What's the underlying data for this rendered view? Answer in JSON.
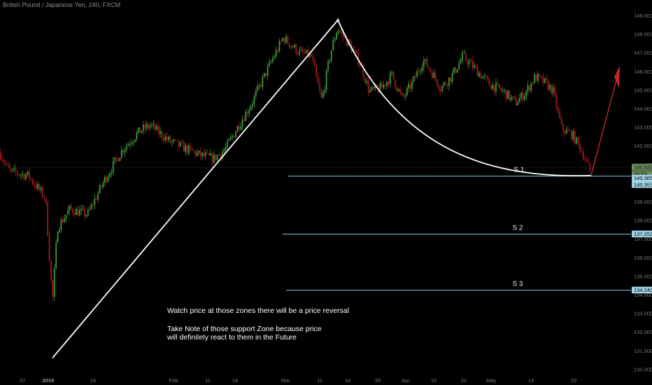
{
  "header": {
    "title": "British Pound / Japanese Yen, 240, FXCM"
  },
  "chart_data": {
    "type": "candlestick",
    "symbol": "GBP/JPY",
    "ylim": [
      129.6,
      149.6
    ],
    "y_ticks": [
      130,
      131,
      132,
      133,
      134,
      135,
      136,
      137,
      138,
      139,
      140,
      141,
      142,
      143,
      144,
      145,
      146,
      147,
      148,
      149
    ],
    "y_tick_labels": [
      "130.000",
      "131.000",
      "132.000",
      "133.000",
      "134.000",
      "135.000",
      "136.000",
      "137.000",
      "138.000",
      "139.000",
      "140.000",
      "141.000",
      "142.000",
      "143.000",
      "144.000",
      "145.000",
      "146.000",
      "147.000",
      "148.000",
      "149.000"
    ],
    "x_ticks": [
      {
        "label": "27",
        "bold": false
      },
      {
        "label": "2019",
        "bold": true
      },
      {
        "label": "14",
        "bold": false
      },
      {
        "label": "Feb",
        "bold": false
      },
      {
        "label": "11",
        "bold": false
      },
      {
        "label": "18",
        "bold": false
      },
      {
        "label": "Mar",
        "bold": false
      },
      {
        "label": "11",
        "bold": false
      },
      {
        "label": "18",
        "bold": false
      },
      {
        "label": "25",
        "bold": false
      },
      {
        "label": "Apr",
        "bold": false
      },
      {
        "label": "15",
        "bold": false
      },
      {
        "label": "22",
        "bold": false
      },
      {
        "label": "May",
        "bold": false
      },
      {
        "label": "13",
        "bold": false
      },
      {
        "label": "20",
        "bold": false
      }
    ],
    "price_anchors": [
      [
        0,
        141.6
      ],
      [
        14,
        140.6
      ],
      [
        40,
        140.4
      ],
      [
        65,
        139.2
      ],
      [
        75,
        133.6
      ],
      [
        82,
        137.6
      ],
      [
        100,
        138.6
      ],
      [
        125,
        138.3
      ],
      [
        150,
        140.2
      ],
      [
        175,
        141.8
      ],
      [
        200,
        142.8
      ],
      [
        215,
        143.1
      ],
      [
        240,
        142.3
      ],
      [
        262,
        141.9
      ],
      [
        285,
        141.5
      ],
      [
        305,
        141.3
      ],
      [
        322,
        141.8
      ],
      [
        338,
        142.9
      ],
      [
        360,
        144.3
      ],
      [
        385,
        146.3
      ],
      [
        405,
        147.8
      ],
      [
        428,
        147.0
      ],
      [
        445,
        146.8
      ],
      [
        460,
        144.4
      ],
      [
        472,
        146.9
      ],
      [
        482,
        148.3
      ],
      [
        500,
        147.4
      ],
      [
        515,
        146.4
      ],
      [
        528,
        144.9
      ],
      [
        545,
        145.1
      ],
      [
        560,
        145.8
      ],
      [
        575,
        144.5
      ],
      [
        590,
        145.4
      ],
      [
        605,
        146.6
      ],
      [
        618,
        145.9
      ],
      [
        630,
        145.1
      ],
      [
        645,
        145.7
      ],
      [
        662,
        146.8
      ],
      [
        680,
        146.1
      ],
      [
        700,
        145.3
      ],
      [
        720,
        144.9
      ],
      [
        737,
        144.3
      ],
      [
        752,
        144.9
      ],
      [
        765,
        145.7
      ],
      [
        778,
        145.4
      ],
      [
        790,
        145.0
      ],
      [
        803,
        142.9
      ],
      [
        818,
        142.6
      ],
      [
        832,
        141.7
      ],
      [
        845,
        140.5
      ]
    ],
    "price_level": 140.832,
    "current_price_labels": [
      {
        "value": "140.832",
        "bg": "#6b8c5a"
      },
      {
        "value": "09:53",
        "bg": "#6b8c5a"
      },
      {
        "value": "140.365",
        "bg": "#9fd3e6"
      },
      {
        "value": "140.353",
        "bg": "#9fd3e6"
      }
    ],
    "support_levels": [
      {
        "name": "S 1",
        "value": 140.365,
        "label": "140.365"
      },
      {
        "name": "S 2",
        "value": 137.253,
        "label": "137.253"
      },
      {
        "name": "S 3",
        "value": 134.24,
        "label": "134.240"
      }
    ],
    "annotations": [
      "Watch price at those zones there will be a price reversal",
      "Take Note of those support Zone because price",
      "will definitely react to them in the Future"
    ],
    "colors": {
      "background": "#000000",
      "up_candle": "#3c9a3c",
      "down_candle": "#a01c1c",
      "support_line": "#7ecbe0",
      "trend_line": "#ffffff",
      "forecast_arrow": "#c0262a",
      "axis_text": "#7a7a7a"
    }
  }
}
